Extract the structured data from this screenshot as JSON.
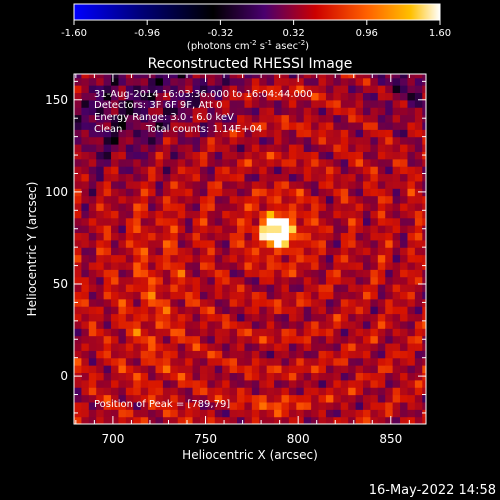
{
  "colorbar": {
    "tick_labels": [
      "-1.60",
      "-0.96",
      "-0.32",
      "0.32",
      "0.96",
      "1.60"
    ],
    "units_prefix": "(photons cm",
    "units_exp1": "-2",
    "units_mid": " s",
    "units_exp2": "-1",
    "units_mid2": " asec",
    "units_exp3": "-2",
    "units_suffix": ")",
    "range": [
      -1.6,
      1.6
    ]
  },
  "chart_data": {
    "type": "heatmap",
    "title": "Reconstructed RHESSI Image",
    "xlabel": "Heliocentric X (arcsec)",
    "ylabel": "Heliocentric Y (arcsec)",
    "xlim": [
      679,
      869
    ],
    "ylim": [
      -26,
      164
    ],
    "x_ticks": [
      700,
      750,
      800,
      850
    ],
    "y_ticks": [
      0,
      50,
      100,
      150
    ],
    "peak": {
      "x": 789,
      "y": 79
    },
    "colormap": [
      "#0000ff",
      "#00007a",
      "#000000",
      "#4a006e",
      "#cc0000",
      "#ff6000",
      "#ffc000",
      "#ffffff"
    ],
    "annotations": {
      "time": "31-Aug-2014 16:03:36.000 to 16:04:44.000",
      "detectors": "Detectors: 3F 6F 9F, Att 0",
      "energy": "Energy Range: 3.0 - 6.0 keV",
      "method": "Clean",
      "counts": "Total counts: 1.14E+04",
      "peak_label": "Position of Peak = [789,79]"
    }
  },
  "footer": {
    "timestamp": "16-May-2022 14:58"
  }
}
